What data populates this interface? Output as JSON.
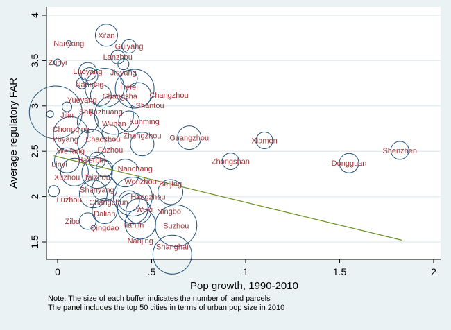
{
  "chart_data": {
    "type": "scatter",
    "subtype": "bubble",
    "xlabel": "Pop growth, 1990-2010",
    "ylabel": "Average regulatory FAR",
    "xlim": [
      -0.05,
      2.02
    ],
    "ylim": [
      1.3,
      4.09
    ],
    "xticks": [
      0,
      0.5,
      1,
      1.5,
      2
    ],
    "xtick_labels": [
      "0",
      ".5",
      "1",
      "1.5",
      "2"
    ],
    "yticks": [
      1.5,
      2,
      2.5,
      3,
      3.5,
      4
    ],
    "ytick_labels": [
      "1.5",
      "2",
      "2.5",
      "3",
      "3.5",
      "4"
    ],
    "grid": "horizontal",
    "notes": [
      "Note: The size of each buffer indicates the number of land parcels",
      "The panel includes the top 50 cities in terms of urban pop size in 2010"
    ],
    "colors": {
      "marker": "#1f4e79",
      "label": "#a0353a",
      "fit_line": "#6b8e23",
      "background": "#eaf2f3"
    },
    "points": [
      {
        "city": "Xi'an",
        "x": 0.26,
        "y": 3.78,
        "size": 16
      },
      {
        "city": "Guiyang",
        "x": 0.38,
        "y": 3.66,
        "size": 10
      },
      {
        "city": "Nanyang",
        "x": 0.06,
        "y": 3.69,
        "size": 4
      },
      {
        "city": "Zunyi",
        "x": 0.0,
        "y": 3.48,
        "size": 5
      },
      {
        "city": "Lanzhou",
        "x": 0.32,
        "y": 3.54,
        "size": 10
      },
      {
        "city": "Jieyang",
        "x": 0.35,
        "y": 3.46,
        "size": 8
      },
      {
        "city": "Luoyang",
        "x": 0.16,
        "y": 3.38,
        "size": 13
      },
      {
        "city": "Nanning",
        "x": 0.17,
        "y": 3.33,
        "size": 12
      },
      {
        "city": "Hefei",
        "x": 0.38,
        "y": 3.3,
        "size": 12
      },
      {
        "city": "Yueyang",
        "x": 0.13,
        "y": 3.25,
        "size": 8
      },
      {
        "city": "Changsha",
        "x": 0.25,
        "y": 3.2,
        "size": 28
      },
      {
        "city": "Shijiazhuang",
        "x": 0.23,
        "y": 3.12,
        "size": 15
      },
      {
        "city": "Shantou",
        "x": 0.41,
        "y": 3.19,
        "size": 28
      },
      {
        "city": "Changzhou",
        "x": 0.43,
        "y": 3.12,
        "size": 18
      },
      {
        "city": "Chongqing",
        "x": -0.01,
        "y": 2.93,
        "size": 38
      },
      {
        "city": "Jilin",
        "x": 0.05,
        "y": 2.99,
        "size": 7
      },
      {
        "city": "Puyang",
        "x": -0.04,
        "y": 2.91,
        "size": 5
      },
      {
        "city": "Wuhan",
        "x": 0.3,
        "y": 2.9,
        "size": 28
      },
      {
        "city": "Kunming",
        "x": 0.38,
        "y": 2.83,
        "size": 15
      },
      {
        "city": "Chaozhou",
        "x": 0.16,
        "y": 2.82,
        "size": 15
      },
      {
        "city": "Weifang",
        "x": 0.07,
        "y": 2.69,
        "size": 25
      },
      {
        "city": "Fuzhou",
        "x": 0.28,
        "y": 2.7,
        "size": 12
      },
      {
        "city": "Ha'erbin",
        "x": 0.18,
        "y": 2.59,
        "size": 20
      },
      {
        "city": "Zhengzhou",
        "x": 0.45,
        "y": 2.58,
        "size": 17
      },
      {
        "city": "Guangzhou",
        "x": 0.7,
        "y": 2.65,
        "size": 17
      },
      {
        "city": "Xiamen",
        "x": 1.1,
        "y": 2.62,
        "size": 12
      },
      {
        "city": "Zhongshan",
        "x": 0.92,
        "y": 2.39,
        "size": 12
      },
      {
        "city": "Dongguan",
        "x": 1.55,
        "y": 2.37,
        "size": 14
      },
      {
        "city": "Shenzhen",
        "x": 1.82,
        "y": 2.51,
        "size": 13
      },
      {
        "city": "Xuzhou",
        "x": 0.05,
        "y": 2.4,
        "size": 18
      },
      {
        "city": "Taizhou",
        "x": 0.21,
        "y": 2.4,
        "size": 12
      },
      {
        "city": "Linyi",
        "x": 0.09,
        "y": 2.27,
        "size": 20
      },
      {
        "city": "Nanchang",
        "x": 0.25,
        "y": 2.31,
        "size": 12
      },
      {
        "city": "Shenyang",
        "x": 0.21,
        "y": 2.26,
        "size": 22
      },
      {
        "city": "Wenzhou",
        "x": 0.36,
        "y": 2.26,
        "size": 20
      },
      {
        "city": "Luzhou",
        "x": -0.02,
        "y": 2.06,
        "size": 8
      },
      {
        "city": "Changchun",
        "x": 0.19,
        "y": 2.03,
        "size": 20
      },
      {
        "city": "Dalian",
        "x": 0.25,
        "y": 2.09,
        "size": 18
      },
      {
        "city": "Hangzhou",
        "x": 0.4,
        "y": 2.0,
        "size": 28
      },
      {
        "city": "Wuxi",
        "x": 0.38,
        "y": 1.95,
        "size": 15
      },
      {
        "city": "Beijing",
        "x": 0.6,
        "y": 2.05,
        "size": 18
      },
      {
        "city": "Qingdao",
        "x": 0.25,
        "y": 1.84,
        "size": 18
      },
      {
        "city": "Tianjin",
        "x": 0.4,
        "y": 1.87,
        "size": 22
      },
      {
        "city": "Ningbo",
        "x": 0.43,
        "y": 1.84,
        "size": 18
      },
      {
        "city": "Zibo",
        "x": 0.16,
        "y": 1.73,
        "size": 12
      },
      {
        "city": "Nanjing",
        "x": 0.44,
        "y": 1.7,
        "size": 22
      },
      {
        "city": "Suzhou",
        "x": 0.63,
        "y": 1.68,
        "size": 30
      },
      {
        "city": "Shanghai",
        "x": 0.61,
        "y": 1.36,
        "size": 28
      }
    ],
    "fit_line": {
      "x": [
        -0.02,
        1.83
      ],
      "y": [
        2.45,
        1.52
      ]
    }
  }
}
